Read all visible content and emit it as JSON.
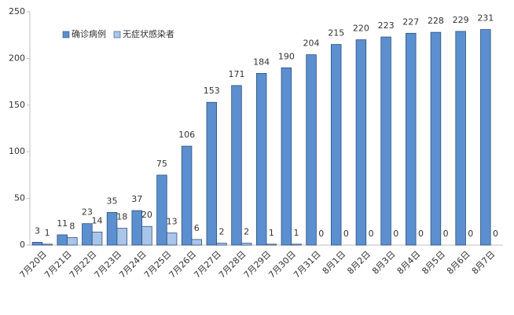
{
  "chart_data": {
    "type": "bar",
    "categories": [
      "7月20日",
      "7月21日",
      "7月22日",
      "7月23日",
      "7月24日",
      "7月25日",
      "7月26日",
      "7月27日",
      "7月28日",
      "7月29日",
      "7月30日",
      "7月31日",
      "8月1日",
      "8月2日",
      "8月3日",
      "8月4日",
      "8月5日",
      "8月6日",
      "8月7日"
    ],
    "series": [
      {
        "name": "确诊病例",
        "color": "#5b8fd0",
        "values": [
          3,
          11,
          23,
          35,
          37,
          75,
          106,
          153,
          171,
          184,
          190,
          204,
          215,
          220,
          223,
          227,
          228,
          229,
          231
        ]
      },
      {
        "name": "无症状感染者",
        "color": "#a9c5ea",
        "values": [
          1,
          8,
          14,
          18,
          20,
          13,
          6,
          2,
          2,
          1,
          1,
          0,
          0,
          0,
          0,
          0,
          0,
          0,
          0
        ]
      }
    ],
    "ylim": [
      0,
      250
    ],
    "yticks": [
      0,
      50,
      100,
      150,
      200,
      250
    ],
    "grid": false,
    "legend": "top-left"
  }
}
